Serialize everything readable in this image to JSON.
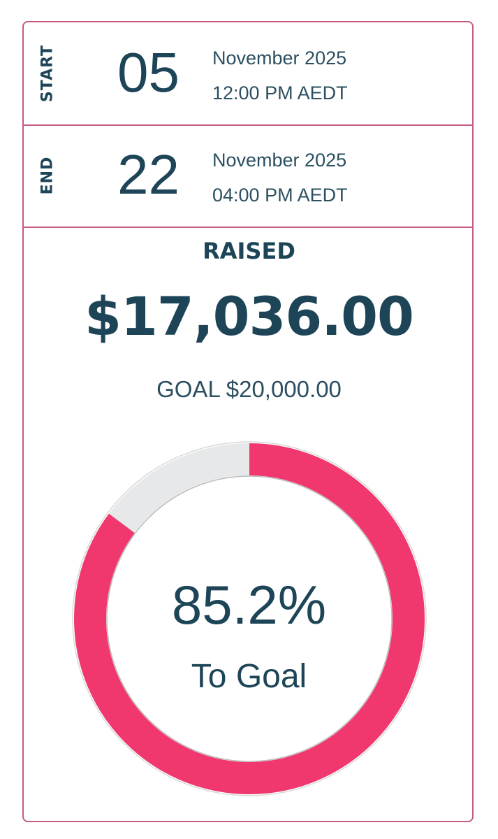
{
  "start": {
    "label": "START",
    "day": "05",
    "month_year": "November 2025",
    "time": "12:00 PM AEDT"
  },
  "end": {
    "label": "END",
    "day": "22",
    "month_year": "November 2025",
    "time": "04:00 PM AEDT"
  },
  "raised": {
    "label": "RAISED",
    "amount": "$17,036.00",
    "goal": "GOAL $20,000.00"
  },
  "progress": {
    "percent": 85.2,
    "percent_text": "85.2%",
    "caption": "To Goal"
  },
  "colors": {
    "accent": "#f0386f",
    "track": "#e6e8ea",
    "text": "#1d4557",
    "border": "#c85a86"
  }
}
